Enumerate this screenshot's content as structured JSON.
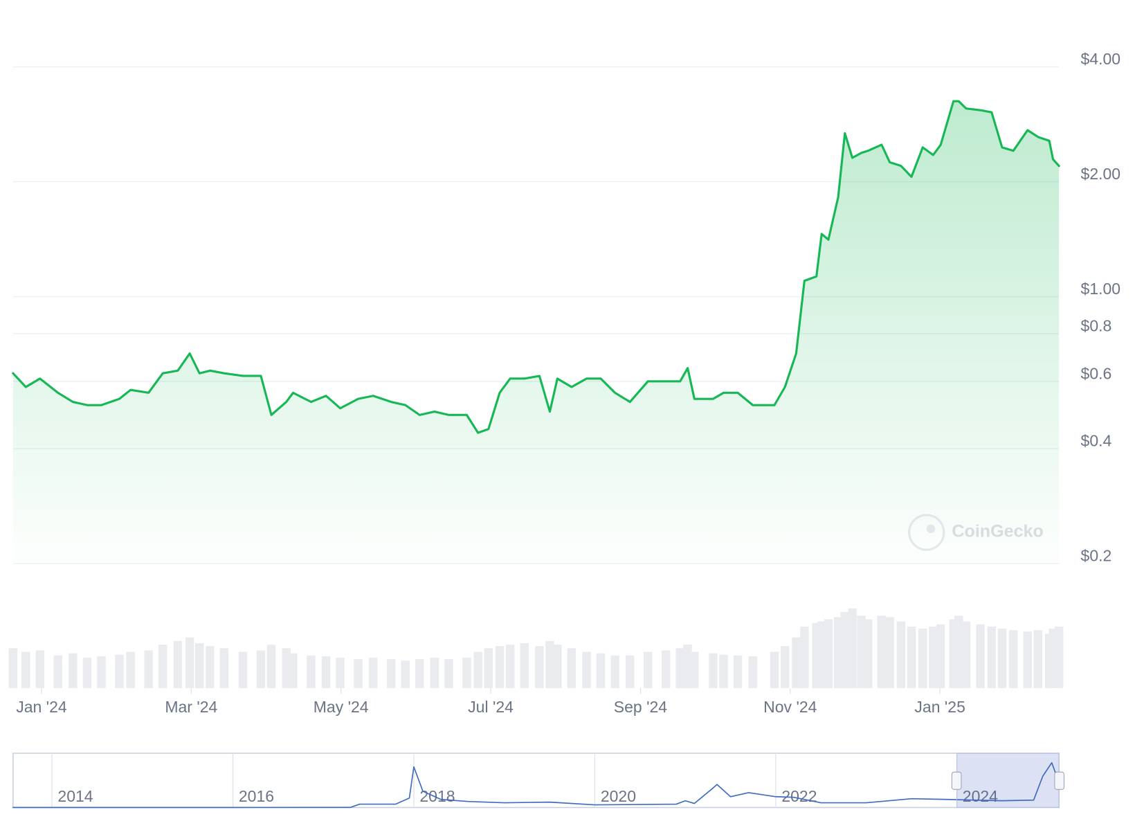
{
  "chart_data": [
    {
      "type": "line",
      "log": true,
      "color": "#16b755",
      "grid": true,
      "watermark": "CoinGecko",
      "x": [
        -0.38,
        -0.21,
        -0.02,
        0.22,
        0.42,
        0.61,
        0.8,
        1.04,
        1.19,
        1.43,
        1.62,
        1.82,
        1.98,
        2.11,
        2.25,
        2.44,
        2.69,
        2.93,
        3.07,
        3.27,
        3.36,
        3.6,
        3.8,
        3.99,
        4.23,
        4.43,
        4.67,
        4.86,
        5.05,
        5.25,
        5.44,
        5.68,
        5.83,
        5.97,
        6.12,
        6.26,
        6.45,
        6.65,
        6.79,
        6.89,
        7.08,
        7.28,
        7.47,
        7.66,
        7.86,
        8.1,
        8.34,
        8.53,
        8.63,
        8.72,
        8.97,
        9.11,
        9.3,
        9.5,
        9.79,
        9.93,
        10.08,
        10.19,
        10.35,
        10.42,
        10.51,
        10.64,
        10.73,
        10.83,
        10.95,
        11.04,
        11.22,
        11.33,
        11.48,
        11.62,
        11.77,
        11.91,
        12.01,
        12.18,
        12.25,
        12.35,
        12.54,
        12.69,
        12.83,
        12.98,
        13.17,
        13.31,
        13.46,
        13.51,
        13.59
      ],
      "values": [
        0.63,
        0.58,
        0.61,
        0.56,
        0.53,
        0.52,
        0.52,
        0.54,
        0.57,
        0.56,
        0.63,
        0.64,
        0.71,
        0.63,
        0.64,
        0.63,
        0.62,
        0.62,
        0.49,
        0.53,
        0.56,
        0.53,
        0.55,
        0.51,
        0.54,
        0.55,
        0.53,
        0.52,
        0.49,
        0.5,
        0.49,
        0.49,
        0.44,
        0.45,
        0.56,
        0.61,
        0.61,
        0.62,
        0.5,
        0.61,
        0.58,
        0.61,
        0.61,
        0.56,
        0.53,
        0.6,
        0.6,
        0.6,
        0.65,
        0.54,
        0.54,
        0.56,
        0.56,
        0.52,
        0.52,
        0.58,
        0.71,
        1.1,
        1.13,
        1.46,
        1.41,
        1.82,
        2.68,
        2.31,
        2.38,
        2.41,
        2.5,
        2.25,
        2.2,
        2.06,
        2.46,
        2.35,
        2.5,
        3.25,
        3.25,
        3.11,
        3.08,
        3.04,
        2.46,
        2.41,
        2.73,
        2.62,
        2.56,
        2.29,
        2.2
      ],
      "volume": [
        55,
        50,
        52,
        45,
        48,
        42,
        44,
        46,
        50,
        52,
        60,
        65,
        70,
        62,
        58,
        55,
        50,
        52,
        60,
        55,
        48,
        45,
        44,
        42,
        40,
        42,
        40,
        38,
        40,
        42,
        40,
        42,
        50,
        55,
        58,
        60,
        62,
        58,
        65,
        60,
        55,
        50,
        48,
        45,
        45,
        50,
        52,
        55,
        60,
        50,
        48,
        46,
        45,
        44,
        50,
        58,
        70,
        85,
        90,
        92,
        95,
        98,
        105,
        110,
        100,
        95,
        100,
        98,
        92,
        85,
        82,
        85,
        88,
        95,
        100,
        92,
        88,
        85,
        82,
        80,
        78,
        80,
        75,
        82,
        85
      ],
      "xlim": [
        -0.38,
        13.59
      ],
      "xticks": [
        {
          "value": 0,
          "label": "Jan '24"
        },
        {
          "value": 2,
          "label": "Mar '24"
        },
        {
          "value": 4,
          "label": "May '24"
        },
        {
          "value": 6,
          "label": "Jul '24"
        },
        {
          "value": 8,
          "label": "Sep '24"
        },
        {
          "value": 10,
          "label": "Nov '24"
        },
        {
          "value": 12,
          "label": "Jan '25"
        }
      ],
      "ylim": [
        0.2,
        4
      ],
      "yticks": [
        {
          "value": 4,
          "label": "$4.00"
        },
        {
          "value": 2,
          "label": "$2.00"
        },
        {
          "value": 1,
          "label": "$1.00"
        },
        {
          "value": 0.8,
          "label": "$0.8"
        },
        {
          "value": 0.6,
          "label": "$0.6"
        },
        {
          "value": 0.4,
          "label": "$0.4"
        },
        {
          "value": 0.2,
          "label": "$0.2"
        }
      ]
    },
    {
      "type": "line",
      "log": false,
      "color": "#3f6cc0",
      "x": [
        2013.57,
        2016.0,
        2017.3,
        2017.4,
        2017.8,
        2017.95,
        2018.0,
        2018.1,
        2018.3,
        2018.6,
        2019.0,
        2019.5,
        2020.0,
        2020.9,
        2021.0,
        2021.1,
        2021.3,
        2021.35,
        2021.5,
        2021.7,
        2022.0,
        2022.2,
        2022.5,
        2023.0,
        2023.5,
        2023.9,
        2024.5,
        2024.85,
        2024.95,
        2025.05,
        2025.1,
        2025.13
      ],
      "values": [
        0.005,
        0.006,
        0.01,
        0.25,
        0.25,
        0.7,
        3.0,
        1.2,
        0.6,
        0.45,
        0.35,
        0.4,
        0.2,
        0.25,
        0.5,
        0.3,
        1.4,
        1.7,
        0.8,
        1.1,
        0.8,
        0.75,
        0.35,
        0.35,
        0.65,
        0.6,
        0.5,
        0.55,
        2.3,
        3.3,
        2.4,
        2.3
      ],
      "xlim": [
        2013.57,
        2025.13
      ],
      "xticks": [
        2014,
        2016,
        2018,
        2020,
        2022,
        2024
      ],
      "ylim": [
        0,
        4
      ]
    }
  ]
}
